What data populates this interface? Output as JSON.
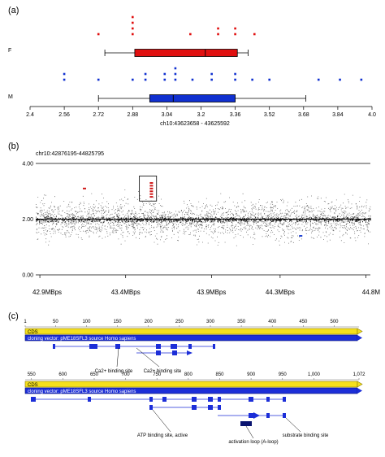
{
  "panels": {
    "a": "(a)",
    "b": "(b)",
    "c": "(c)"
  },
  "chart_data": [
    {
      "type": "box",
      "panel": "(a)",
      "xlabel": "ch10:43623658 - 43625592",
      "xlim": [
        2.4,
        4.0
      ],
      "xticks": [
        "2.4",
        "2.56",
        "2.72",
        "2.88",
        "3.04",
        "3.2",
        "3.36",
        "3.52",
        "3.68",
        "3.84",
        "4.0"
      ],
      "groups": [
        {
          "name": "F",
          "color": "#e01010",
          "whisker": [
            2.75,
            3.42
          ],
          "box": [
            2.89,
            3.37
          ],
          "median": 3.22,
          "points": [
            {
              "x": 2.72,
              "y": 1
            },
            {
              "x": 2.88,
              "y": 1
            },
            {
              "x": 2.88,
              "y": 2
            },
            {
              "x": 2.88,
              "y": 3
            },
            {
              "x": 2.88,
              "y": 4
            },
            {
              "x": 3.15,
              "y": 1
            },
            {
              "x": 3.28,
              "y": 1
            },
            {
              "x": 3.28,
              "y": 2
            },
            {
              "x": 3.36,
              "y": 1
            },
            {
              "x": 3.36,
              "y": 2
            },
            {
              "x": 3.45,
              "y": 1
            }
          ]
        },
        {
          "name": "M",
          "color": "#1030d0",
          "whisker": [
            2.72,
            3.69
          ],
          "box": [
            2.96,
            3.36
          ],
          "median": 3.07,
          "points": [
            {
              "x": 2.56,
              "y": 1
            },
            {
              "x": 2.56,
              "y": 2
            },
            {
              "x": 2.72,
              "y": 1
            },
            {
              "x": 2.88,
              "y": 1
            },
            {
              "x": 2.94,
              "y": 1
            },
            {
              "x": 2.94,
              "y": 2
            },
            {
              "x": 3.03,
              "y": 1
            },
            {
              "x": 3.03,
              "y": 2
            },
            {
              "x": 3.08,
              "y": 1
            },
            {
              "x": 3.08,
              "y": 2
            },
            {
              "x": 3.08,
              "y": 3
            },
            {
              "x": 3.16,
              "y": 1
            },
            {
              "x": 3.25,
              "y": 1
            },
            {
              "x": 3.25,
              "y": 2
            },
            {
              "x": 3.36,
              "y": 1
            },
            {
              "x": 3.36,
              "y": 2
            },
            {
              "x": 3.44,
              "y": 1
            },
            {
              "x": 3.52,
              "y": 1
            },
            {
              "x": 3.75,
              "y": 1
            },
            {
              "x": 3.85,
              "y": 1
            },
            {
              "x": 3.95,
              "y": 1
            }
          ]
        }
      ]
    },
    {
      "type": "scatter",
      "panel": "(b)",
      "title": "chr10:42876195-44825795",
      "ylim": [
        0.0,
        4.0
      ],
      "yticks": [
        "0.00",
        "2.00",
        "4.00"
      ],
      "xticks": [
        "42.9MBps",
        "43.4MBps",
        "43.9MBps",
        "44.3MBps",
        "44.8M"
      ],
      "xtick_values": [
        42.9,
        43.4,
        43.9,
        44.3,
        44.8
      ],
      "xlim": [
        42.876,
        44.826
      ],
      "baseline": 2.0,
      "highlight_region": {
        "x": [
          43.48,
          43.58
        ],
        "y": [
          2.65,
          3.55
        ]
      },
      "red_marks": [
        {
          "x": 43.16,
          "y": 3.1
        },
        {
          "x": 43.55,
          "y": 3.3
        },
        {
          "x": 43.55,
          "y": 3.2
        },
        {
          "x": 43.55,
          "y": 3.1
        },
        {
          "x": 43.55,
          "y": 3.0
        },
        {
          "x": 43.55,
          "y": 2.9
        },
        {
          "x": 43.55,
          "y": 2.8
        }
      ],
      "blue_marks": [
        {
          "x": 44.42,
          "y": 1.4
        }
      ]
    },
    {
      "type": "table",
      "panel": "(c)",
      "tracks": [
        {
          "ruler": [
            "1",
            "50",
            "100",
            "150",
            "200",
            "250",
            "300",
            "350",
            "400",
            "450",
            "500"
          ],
          "ruler_values": [
            1,
            50,
            100,
            150,
            200,
            250,
            300,
            350,
            400,
            450,
            500
          ],
          "range": [
            1,
            540
          ],
          "cds": "CDS",
          "vector": "cloning vector: pME18SFL3 source Homo sapiens",
          "annotations": [
            "Ca2+ binding site",
            "Ca2+ binding site"
          ]
        },
        {
          "ruler": [
            "550",
            "600",
            "650",
            "700",
            "750",
            "800",
            "850",
            "900",
            "950",
            "1,000",
            "1,072"
          ],
          "ruler_values": [
            550,
            600,
            650,
            700,
            750,
            800,
            850,
            900,
            950,
            1000,
            1072
          ],
          "range": [
            540,
            1072
          ],
          "cds": "CDS",
          "vector": "cloning vector: pME18SFL3 source Homo sapiens",
          "annotations": [
            "ATP binding site, active",
            "activation loop (A-loop)",
            "substrate binding site"
          ]
        }
      ]
    }
  ]
}
